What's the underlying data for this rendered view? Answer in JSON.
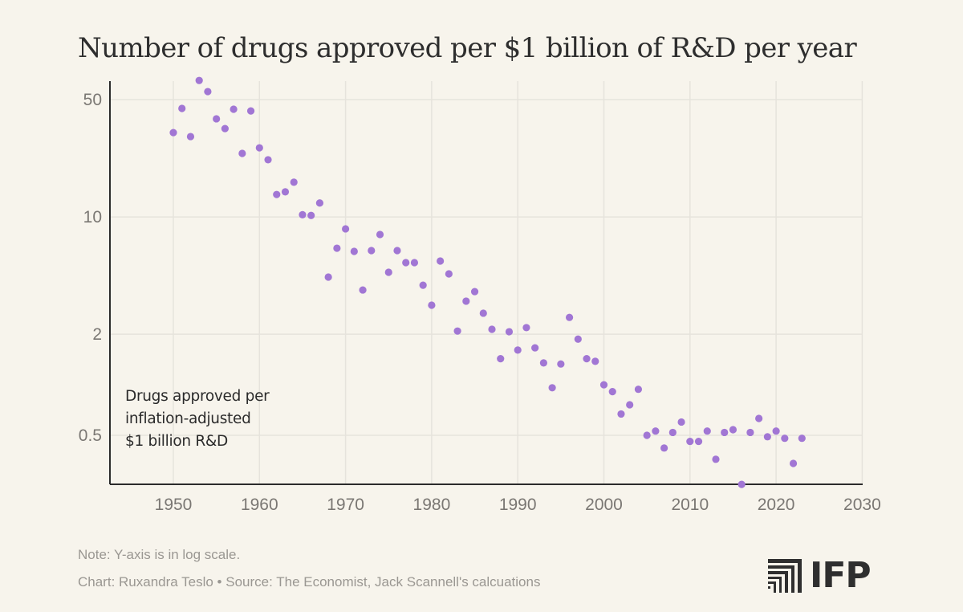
{
  "title": "Number of drugs approved per $1 billion of R&D per year",
  "annotation": [
    "Drugs approved per",
    "inflation-adjusted",
    "$1 billion R&D"
  ],
  "note": "Note: Y-axis is in log scale.",
  "source": "Chart: Ruxandra Teslo • Source: The Economist, Jack Scannell's calcuations",
  "logo": {
    "text": "IFP",
    "icon": "ifp-stairs-icon"
  },
  "colors": {
    "point": "#a176d4",
    "background": "#f7f4ec",
    "axis": "#2b2b2b",
    "grid": "#e6e3dc"
  },
  "chart_data": {
    "type": "scatter",
    "title": "Number of drugs approved per $1 billion of R&D per year",
    "xlabel": "",
    "ylabel": "",
    "y_scale": "log",
    "xlim": [
      1943,
      2030
    ],
    "ylim": [
      0.25,
      70
    ],
    "x_ticks": [
      1950,
      1960,
      1970,
      1980,
      1990,
      2000,
      2010,
      2020,
      2030
    ],
    "y_ticks": [
      50,
      10,
      2,
      0.5
    ],
    "y_tick_labels": [
      "50",
      "10",
      "2",
      "0.5"
    ],
    "grid": true,
    "legend": "none",
    "series": [
      {
        "name": "Drugs approved per inflation-adjusted $1 billion R&D",
        "x": [
          1950,
          1951,
          1952,
          1953,
          1954,
          1955,
          1956,
          1957,
          1958,
          1959,
          1960,
          1961,
          1962,
          1963,
          1964,
          1965,
          1966,
          1967,
          1968,
          1969,
          1970,
          1971,
          1972,
          1973,
          1974,
          1975,
          1976,
          1977,
          1978,
          1979,
          1980,
          1981,
          1982,
          1983,
          1984,
          1985,
          1986,
          1987,
          1988,
          1989,
          1990,
          1991,
          1992,
          1993,
          1994,
          1995,
          1996,
          1997,
          1998,
          1999,
          2000,
          2001,
          2002,
          2003,
          2004,
          2005,
          2006,
          2007,
          2008,
          2009,
          2010,
          2011,
          2012,
          2013,
          2014,
          2015,
          2016,
          2017,
          2018,
          2019,
          2020,
          2021,
          2022,
          2023
        ],
        "y": [
          31.8,
          44.3,
          30.1,
          65,
          55.8,
          38.4,
          33.6,
          43.8,
          23.9,
          42.8,
          25.8,
          21.9,
          13.6,
          14.1,
          16.1,
          10.3,
          10.2,
          12.1,
          4.38,
          6.51,
          8.49,
          6.23,
          3.67,
          6.3,
          7.86,
          4.68,
          6.3,
          5.34,
          5.34,
          3.92,
          2.98,
          5.46,
          4.58,
          2.09,
          3.15,
          3.59,
          2.67,
          2.14,
          1.43,
          2.07,
          1.61,
          2.19,
          1.66,
          1.35,
          0.96,
          1.33,
          2.52,
          1.87,
          1.43,
          1.38,
          1.0,
          0.91,
          0.67,
          0.76,
          0.94,
          0.5,
          0.53,
          0.42,
          0.52,
          0.6,
          0.46,
          0.46,
          0.53,
          0.36,
          0.52,
          0.54,
          0.255,
          0.52,
          0.63,
          0.49,
          0.53,
          0.48,
          0.34,
          0.48
        ]
      }
    ],
    "annotation": "Drugs approved per inflation-adjusted $1 billion R&D"
  }
}
